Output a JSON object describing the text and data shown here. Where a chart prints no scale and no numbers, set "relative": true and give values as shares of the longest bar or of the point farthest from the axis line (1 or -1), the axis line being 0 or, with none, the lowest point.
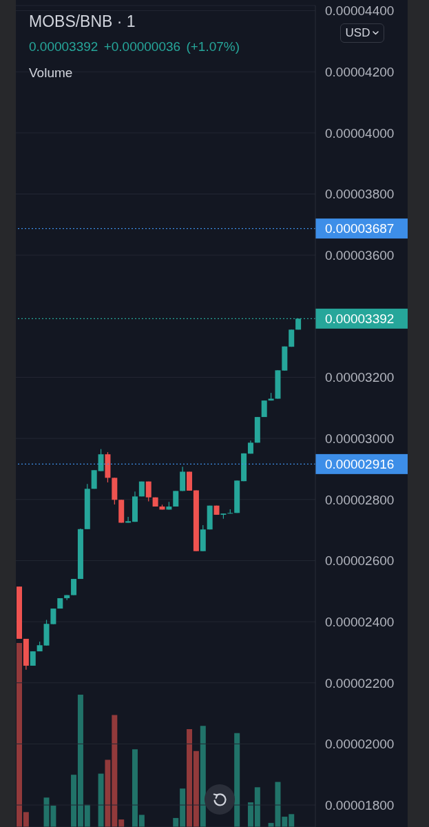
{
  "chart_data": [
    {
      "type": "candlestick",
      "title": "MOBS/BNB · 1",
      "subtitle": "0.00003392 +0.00000036 (+1.07%)",
      "annotations": [
        "USD"
      ],
      "categories": [
        null,
        null,
        null,
        null,
        null,
        null,
        null,
        null,
        null,
        null,
        null,
        null,
        null,
        null,
        null,
        null,
        null,
        null,
        null,
        null,
        null,
        null,
        null,
        null,
        null,
        null,
        null,
        null,
        null,
        null,
        null,
        null,
        null,
        null,
        null,
        null,
        null,
        null,
        null,
        null,
        null,
        null
      ],
      "ohlc": [
        [
          2.515e-05,
          2.515e-05,
          2.344e-05,
          2.344e-05
        ],
        [
          2.344e-05,
          2.344e-05,
          2.243e-05,
          2.256e-05
        ],
        [
          2.256e-05,
          2.303e-05,
          2.256e-05,
          2.303e-05
        ],
        [
          2.303e-05,
          2.335e-05,
          2.303e-05,
          2.323e-05
        ],
        [
          2.322e-05,
          2.406e-05,
          2.322e-05,
          2.393e-05
        ],
        [
          2.392e-05,
          2.443e-05,
          2.392e-05,
          2.443e-05
        ],
        [
          2.443e-05,
          2.477e-05,
          2.443e-05,
          2.477e-05
        ],
        [
          2.477e-05,
          2.487e-05,
          2.471e-05,
          2.487e-05
        ],
        [
          2.487e-05,
          2.54e-05,
          2.487e-05,
          2.54e-05
        ],
        [
          2.54e-05,
          2.705e-05,
          2.54e-05,
          2.703e-05
        ],
        [
          2.703e-05,
          2.851e-05,
          2.703e-05,
          2.835e-05
        ],
        [
          2.835e-05,
          2.896e-05,
          2.835e-05,
          2.896e-05
        ],
        [
          2.893e-05,
          2.965e-05,
          2.893e-05,
          2.948e-05
        ],
        [
          2.948e-05,
          2.955e-05,
          2.856e-05,
          2.871e-05
        ],
        [
          2.871e-05,
          2.871e-05,
          2.784e-05,
          2.799e-05
        ],
        [
          2.799e-05,
          2.799e-05,
          2.724e-05,
          2.724e-05
        ],
        [
          2.724e-05,
          2.743e-05,
          2.724e-05,
          2.729e-05
        ],
        [
          2.727e-05,
          2.826e-05,
          2.727e-05,
          2.81e-05
        ],
        [
          2.81e-05,
          2.859e-05,
          2.81e-05,
          2.859e-05
        ],
        [
          2.859e-05,
          2.859e-05,
          2.794e-05,
          2.807e-05
        ],
        [
          2.807e-05,
          2.807e-05,
          2.777e-05,
          2.777e-05
        ],
        [
          2.777e-05,
          2.783e-05,
          2.767e-05,
          2.767e-05
        ],
        [
          2.767e-05,
          2.792e-05,
          2.767e-05,
          2.777e-05
        ],
        [
          2.777e-05,
          2.828e-05,
          2.777e-05,
          2.828e-05
        ],
        [
          2.828e-05,
          2.907e-05,
          2.828e-05,
          2.891e-05
        ],
        [
          2.891e-05,
          2.891e-05,
          2.829e-05,
          2.829e-05
        ],
        [
          2.83e-05,
          2.83e-05,
          2.631e-05,
          2.631e-05
        ],
        [
          2.631e-05,
          2.716e-05,
          2.631e-05,
          2.702e-05
        ],
        [
          2.702e-05,
          2.78e-05,
          2.702e-05,
          2.78e-05
        ],
        [
          2.78e-05,
          2.78e-05,
          2.75e-05,
          2.75e-05
        ],
        [
          2.75e-05,
          2.754e-05,
          2.737e-05,
          2.754e-05
        ],
        [
          2.754e-05,
          2.768e-05,
          2.754e-05,
          2.756e-05
        ],
        [
          2.756e-05,
          2.862e-05,
          2.756e-05,
          2.862e-05
        ],
        [
          2.86e-05,
          2.951e-05,
          2.86e-05,
          2.951e-05
        ],
        [
          2.95e-05,
          2.993e-05,
          2.95e-05,
          2.986e-05
        ],
        [
          2.986e-05,
          3.07e-05,
          2.986e-05,
          3.07e-05
        ],
        [
          3.07e-05,
          3.124e-05,
          3.07e-05,
          3.124e-05
        ],
        [
          3.124e-05,
          3.149e-05,
          3.124e-05,
          3.13e-05
        ],
        [
          3.13e-05,
          3.223e-05,
          3.13e-05,
          3.223e-05
        ],
        [
          3.222e-05,
          3.301e-05,
          3.222e-05,
          3.301e-05
        ],
        [
          3.3e-05,
          3.356e-05,
          3.3e-05,
          3.356e-05
        ],
        [
          3.356e-05,
          3.392e-05,
          3.356e-05,
          3.392e-05
        ]
      ],
      "colors": [
        "#ef5350",
        "#ef5350",
        "#26a69a",
        "#26a69a",
        "#26a69a",
        "#26a69a",
        "#26a69a",
        "#26a69a",
        "#26a69a",
        "#26a69a",
        "#26a69a",
        "#26a69a",
        "#26a69a",
        "#ef5350",
        "#ef5350",
        "#ef5350",
        "#26a69a",
        "#26a69a",
        "#26a69a",
        "#ef5350",
        "#ef5350",
        "#ef5350",
        "#26a69a",
        "#26a69a",
        "#26a69a",
        "#ef5350",
        "#ef5350",
        "#26a69a",
        "#26a69a",
        "#ef5350",
        "#26a69a",
        "#26a69a",
        "#26a69a",
        "#26a69a",
        "#26a69a",
        "#26a69a",
        "#26a69a",
        "#26a69a",
        "#26a69a",
        "#26a69a",
        "#26a69a",
        "#26a69a"
      ],
      "ylim": [
        1.728e-05,
        4.417e-05
      ],
      "yticks": [
        {
          "value": 1.8e-05,
          "label": "0.00001800"
        },
        {
          "value": 2e-05,
          "label": "0.00002000"
        },
        {
          "value": 2.2e-05,
          "label": "0.00002200"
        },
        {
          "value": 2.4e-05,
          "label": "0.00002400"
        },
        {
          "value": 2.6e-05,
          "label": "0.00002600"
        },
        {
          "value": 2.8e-05,
          "label": "0.00002800"
        },
        {
          "value": 3e-05,
          "label": "0.00003000"
        },
        {
          "value": 3.2e-05,
          "label": "0.00003200"
        },
        {
          "value": 3.6e-05,
          "label": "0.00003600"
        },
        {
          "value": 3.8e-05,
          "label": "0.00003800"
        },
        {
          "value": 4e-05,
          "label": "0.00004000"
        },
        {
          "value": 4.2e-05,
          "label": "0.00004200"
        },
        {
          "value": 4.4e-05,
          "label": "0.00004400"
        }
      ],
      "grid": "y",
      "tick_labels": "y",
      "ref_lines": [
        {
          "axis": "y",
          "value": 3.687e-05,
          "label": "0.00003687",
          "color": "#3d8ee8",
          "line_style": "dotted"
        },
        {
          "axis": "y",
          "value": 3.392e-05,
          "label": "0.00003392",
          "color": "#26a69a",
          "line_style": "dotted"
        },
        {
          "axis": "y",
          "value": 2.916e-05,
          "label": "0.00002916",
          "color": "#3d8ee8",
          "line_style": "dotted"
        }
      ]
    },
    {
      "type": "bar",
      "title": "Volume",
      "relative": true,
      "categories": [
        null,
        null,
        null,
        null,
        null,
        null,
        null,
        null,
        null,
        null,
        null,
        null,
        null,
        null,
        null,
        null,
        null,
        null,
        null,
        null,
        null,
        null,
        null,
        null,
        null,
        null,
        null,
        null,
        null,
        null,
        null,
        null,
        null,
        null,
        null,
        null,
        null,
        null,
        null,
        null,
        null,
        null
      ],
      "values": [
        1,
        0.081,
        null,
        null,
        0.16,
        0.116,
        null,
        null,
        0.284,
        0.719,
        0.121,
        null,
        0.29,
        0.365,
        0.609,
        0.041,
        null,
        0.422,
        0.066,
        null,
        null,
        null,
        null,
        0.049,
        0.209,
        0.532,
        0.413,
        0.55,
        null,
        null,
        null,
        null,
        0.51,
        null,
        0.134,
        0.216,
        null,
        0.022,
        0.245,
        0.056,
        0.07,
        null
      ],
      "colors": [
        "#923a3b",
        "#923a3b",
        "#217369",
        "#217369",
        "#217369",
        "#217369",
        "#217369",
        "#217369",
        "#217369",
        "#217369",
        "#217369",
        "#217369",
        "#217369",
        "#923a3b",
        "#923a3b",
        "#923a3b",
        "#217369",
        "#217369",
        "#217369",
        "#923a3b",
        "#923a3b",
        "#923a3b",
        "#217369",
        "#217369",
        "#217369",
        "#923a3b",
        "#923a3b",
        "#217369",
        "#217369",
        "#923a3b",
        "#217369",
        "#217369",
        "#217369",
        "#217369",
        "#217369",
        "#217369",
        "#217369",
        "#217369",
        "#217369",
        "#217369",
        "#217369",
        "#217369"
      ]
    }
  ]
}
